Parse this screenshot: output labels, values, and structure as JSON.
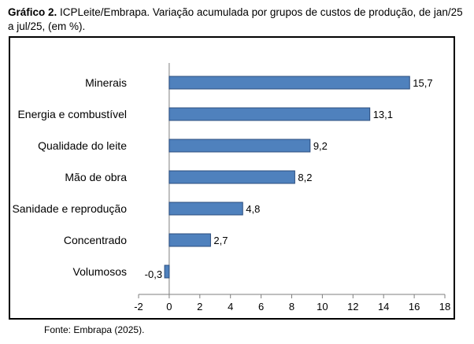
{
  "caption": {
    "label": "Gráfico 2.",
    "text": " ICPLeite/Embrapa. Variação acumulada por grupos de custos de produção, de jan/25 a jul/25, (em %)."
  },
  "source": "Fonte: Embrapa (2025).",
  "colors": {
    "bar": "#4f81bd",
    "bar_stroke": "#2b4d7e"
  },
  "chart_data": {
    "type": "bar",
    "orientation": "horizontal",
    "categories": [
      "Minerais",
      "Energia e combustível",
      "Qualidade do leite",
      "Mão de obra",
      "Sanidade e reprodução",
      "Concentrado",
      "Volumosos"
    ],
    "values": [
      15.7,
      13.1,
      9.2,
      8.2,
      4.8,
      2.7,
      -0.3
    ],
    "value_labels": [
      "15,7",
      "13,1",
      "9,2",
      "8,2",
      "4,8",
      "2,7",
      "-0,3"
    ],
    "xlim": [
      -2,
      18
    ],
    "xticks": [
      "-2",
      "0",
      "2",
      "4",
      "6",
      "8",
      "10",
      "12",
      "14",
      "16",
      "18"
    ],
    "grid": false,
    "legend": "none"
  }
}
